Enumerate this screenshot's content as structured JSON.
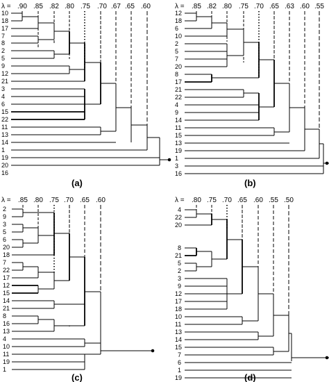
{
  "lambda_symbol": "λ =",
  "panels": [
    {
      "caption": "(a)",
      "lambdas": [
        ".90",
        ".85",
        ".82",
        ".80",
        ".75",
        ".70",
        ".67",
        ".65",
        ".60"
      ],
      "leaves": [
        "10",
        "18",
        "17",
        "7",
        "8",
        "2",
        "5",
        "9",
        "12",
        "21",
        "3",
        "4",
        "6",
        "15",
        "22",
        "11",
        "13",
        "14",
        "1",
        "19",
        "20",
        "16"
      ]
    },
    {
      "caption": "(b)",
      "lambdas": [
        ".85",
        ".82",
        ".80",
        ".75",
        ".70",
        ".65",
        ".63",
        ".60",
        ".55"
      ],
      "leaves": [
        "12",
        "18",
        "6",
        "10",
        "2",
        "5",
        "7",
        "20",
        "8",
        "17",
        "21",
        "22",
        "4",
        "9",
        "14",
        "11",
        "15",
        "13",
        "19",
        "1",
        "3",
        "16"
      ]
    },
    {
      "caption": "(c)",
      "lambdas": [
        ".85",
        ".80",
        ".75",
        ".70",
        ".65",
        ".60"
      ],
      "leaves": [
        "2",
        "9",
        "3",
        "5",
        "6",
        "20",
        "18",
        "7",
        "22",
        "17",
        "12",
        "15",
        "14",
        "21",
        "8",
        "16",
        "13",
        "4",
        "10",
        "11",
        "19",
        "1"
      ]
    },
    {
      "caption": "(d)",
      "lambdas": [
        ".80",
        ".75",
        ".70",
        ".65",
        ".60",
        ".55",
        ".50"
      ],
      "leaves": [
        "4",
        "22",
        "20",
        "8",
        "21",
        "5",
        "2",
        "3",
        "9",
        "12",
        "17",
        "18",
        "10",
        "11",
        "13",
        "14",
        "15",
        "7",
        "6",
        "1",
        "19",
        "16"
      ]
    }
  ]
}
